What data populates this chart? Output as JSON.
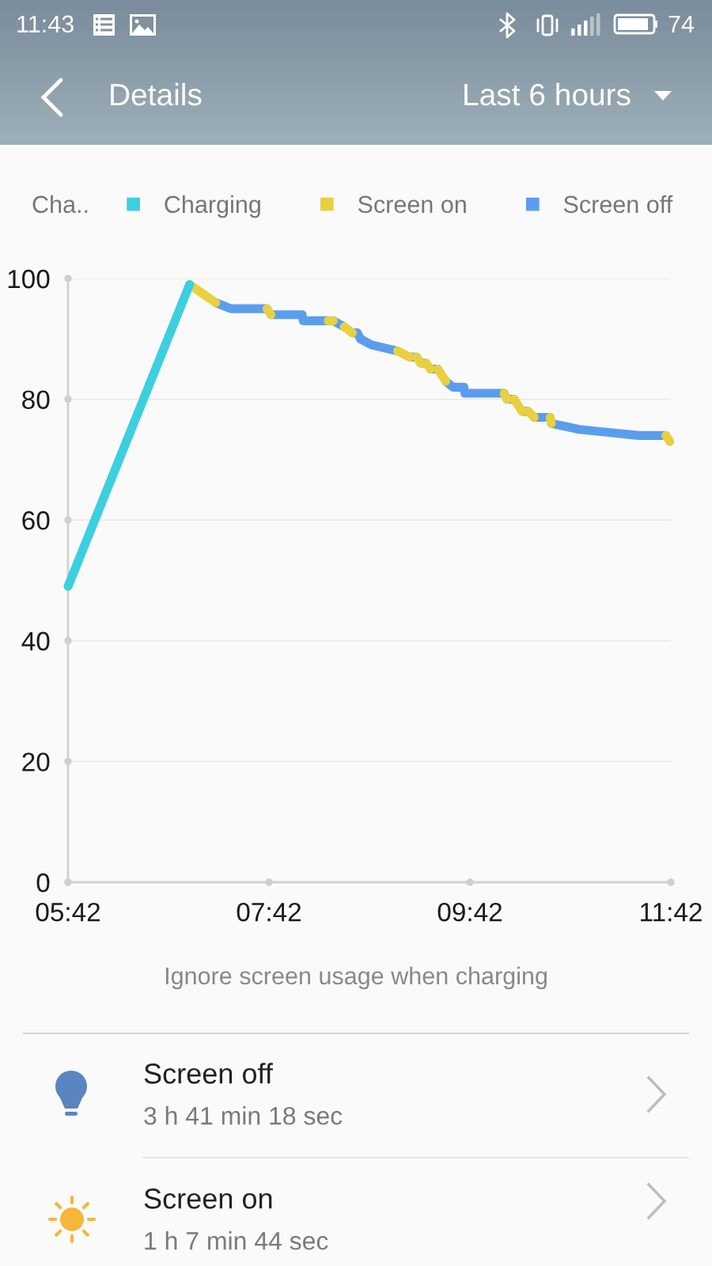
{
  "chart_data": {
    "type": "line",
    "title": "Details",
    "subtitle": "Last 6 hours",
    "legend_title": "Cha..",
    "legend": "top",
    "series": [
      {
        "name": "Charging",
        "color": "#3ccfe0",
        "x": [
          5.7,
          6.91
        ],
        "values": [
          49,
          99
        ]
      },
      {
        "name": "Screen on",
        "color": "#e8d040",
        "x": [
          6.91,
          7.17,
          null,
          7.68,
          7.72,
          null,
          8.29,
          8.34,
          null,
          8.45,
          8.53,
          null,
          8.98,
          9.1,
          null,
          9.17,
          9.21,
          null,
          9.26,
          9.31,
          null,
          9.38,
          9.46,
          null,
          10.04,
          10.07,
          null,
          10.14,
          10.22,
          null,
          10.28,
          10.34,
          null,
          10.5,
          10.51,
          null,
          11.65,
          11.69
        ],
        "values": [
          99,
          96,
          null,
          95,
          94,
          null,
          93,
          93,
          null,
          92,
          91,
          null,
          88,
          87,
          null,
          87,
          86,
          null,
          86,
          85,
          null,
          85,
          83,
          null,
          81,
          80,
          null,
          80,
          78,
          null,
          78,
          77,
          null,
          77,
          76,
          null,
          74,
          73
        ]
      },
      {
        "name": "Screen off",
        "color": "#5b9ded",
        "x": [
          7.17,
          7.32,
          7.68,
          null,
          7.72,
          8.03,
          8.04,
          8.29,
          null,
          8.34,
          8.45,
          null,
          8.53,
          8.58,
          8.61,
          8.72,
          8.98,
          null,
          9.1,
          9.17,
          null,
          9.21,
          9.26,
          null,
          9.31,
          9.38,
          null,
          9.46,
          9.53,
          9.64,
          9.65,
          10.04,
          null,
          10.07,
          10.14,
          null,
          10.22,
          10.28,
          null,
          10.34,
          10.5,
          null,
          10.51,
          10.79,
          11.38,
          11.65
        ],
        "values": [
          96,
          95,
          95,
          null,
          94,
          94,
          93,
          93,
          null,
          93,
          92,
          null,
          91,
          91,
          90,
          89,
          88,
          null,
          87,
          87,
          null,
          86,
          86,
          null,
          85,
          85,
          null,
          83,
          82,
          82,
          81,
          81,
          null,
          80,
          80,
          null,
          78,
          78,
          null,
          77,
          77,
          null,
          76,
          75,
          74,
          74
        ]
      }
    ],
    "xlim": [
      5.7,
      11.7
    ],
    "xticks": [
      {
        "value": 5.7,
        "label": "05:42"
      },
      {
        "value": 7.7,
        "label": "07:42"
      },
      {
        "value": 9.7,
        "label": "09:42"
      },
      {
        "value": 11.7,
        "label": "11:42"
      }
    ],
    "ylim": [
      0,
      100
    ],
    "yticks": [
      0,
      20,
      40,
      60,
      80,
      100
    ],
    "grid": "y",
    "line_style": "solid",
    "annotations": [
      "11:43",
      "74",
      "Ignore screen usage when charging",
      "Screen off",
      "3 h 41 min 18 sec",
      "Screen on",
      "1 h 7 min 44 sec"
    ]
  }
}
